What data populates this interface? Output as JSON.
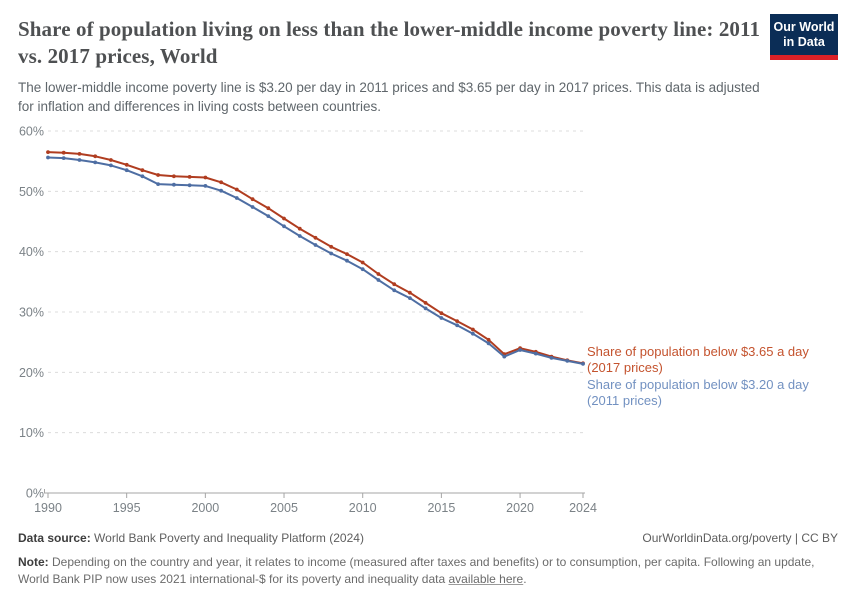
{
  "header": {
    "title": "Share of population living on less than the lower-middle income poverty line: 2011 vs. 2017 prices, World",
    "subtitle": "The lower-middle income poverty line is $3.20 per day in 2011 prices and $3.65 per day in 2017 prices. This data is adjusted for inflation and differences in living costs between countries.",
    "logo": {
      "line1": "Our World",
      "line2": "in Data",
      "bg_color": "#0b2d56",
      "bar_color": "#dc2127"
    }
  },
  "chart_data": {
    "type": "line",
    "x": [
      1990,
      1991,
      1992,
      1993,
      1994,
      1995,
      1996,
      1997,
      1998,
      1999,
      2000,
      2001,
      2002,
      2003,
      2004,
      2005,
      2006,
      2007,
      2008,
      2009,
      2010,
      2011,
      2012,
      2013,
      2014,
      2015,
      2016,
      2017,
      2018,
      2019,
      2020,
      2021,
      2022,
      2023,
      2024
    ],
    "series": [
      {
        "name": "Share of population below $3.65 a day (2017 prices)",
        "label_line1": "Share of population below $3.65 a day",
        "label_line2": "(2017 prices)",
        "color": "#b03d20",
        "label_color": "#c4532e",
        "values": [
          56.5,
          56.4,
          56.2,
          55.8,
          55.2,
          54.4,
          53.5,
          52.7,
          52.5,
          52.4,
          52.3,
          51.5,
          50.3,
          48.7,
          47.2,
          45.5,
          43.8,
          42.3,
          40.8,
          39.6,
          38.2,
          36.3,
          34.6,
          33.2,
          31.5,
          29.8,
          28.5,
          27.1,
          25.4,
          23.0,
          24.0,
          23.4,
          22.6,
          22.0,
          21.5
        ]
      },
      {
        "name": "Share of population below $3.20 a day (2011 prices)",
        "label_line1": "Share of population below $3.20 a day",
        "label_line2": "(2011 prices)",
        "color": "#4e6ea3",
        "label_color": "#7291c1",
        "values": [
          55.6,
          55.5,
          55.2,
          54.8,
          54.3,
          53.5,
          52.5,
          51.2,
          51.1,
          51.0,
          50.9,
          50.1,
          48.9,
          47.4,
          45.9,
          44.2,
          42.6,
          41.1,
          39.7,
          38.5,
          37.1,
          35.3,
          33.6,
          32.3,
          30.6,
          29.0,
          27.8,
          26.4,
          24.8,
          22.6,
          23.7,
          23.1,
          22.4,
          21.9,
          21.4
        ]
      }
    ],
    "title": "Share of population living on less than the lower-middle income poverty line: 2011 vs. 2017 prices, World",
    "xlabel": "",
    "ylabel": "",
    "ylim": [
      0,
      60
    ],
    "yticks": [
      0,
      10,
      20,
      30,
      40,
      50,
      60
    ],
    "ytick_labels": [
      "0%",
      "10%",
      "20%",
      "30%",
      "40%",
      "50%",
      "60%"
    ],
    "xticks": [
      1990,
      1995,
      2000,
      2005,
      2010,
      2015,
      2020,
      2024
    ],
    "grid": "horizontal-dashed",
    "legend_position": "right-of-line-end",
    "gridline_color": "#dcdcdc",
    "axis_color": "#a5a5a5",
    "tick_label_color": "#7b8287"
  },
  "footer": {
    "datasource_label": "Data source:",
    "datasource_text": " World Bank Poverty and Inequality Platform (2024)",
    "rights": "OurWorldinData.org/poverty | CC BY",
    "note_label": "Note:",
    "note_text": " Depending on the country and year, it relates to income (measured after taxes and benefits) or to consumption, per capita. Following an update, World Bank PIP now uses 2021 international-$ for its poverty and inequality data ",
    "note_link": "available here",
    "note_suffix": "."
  }
}
